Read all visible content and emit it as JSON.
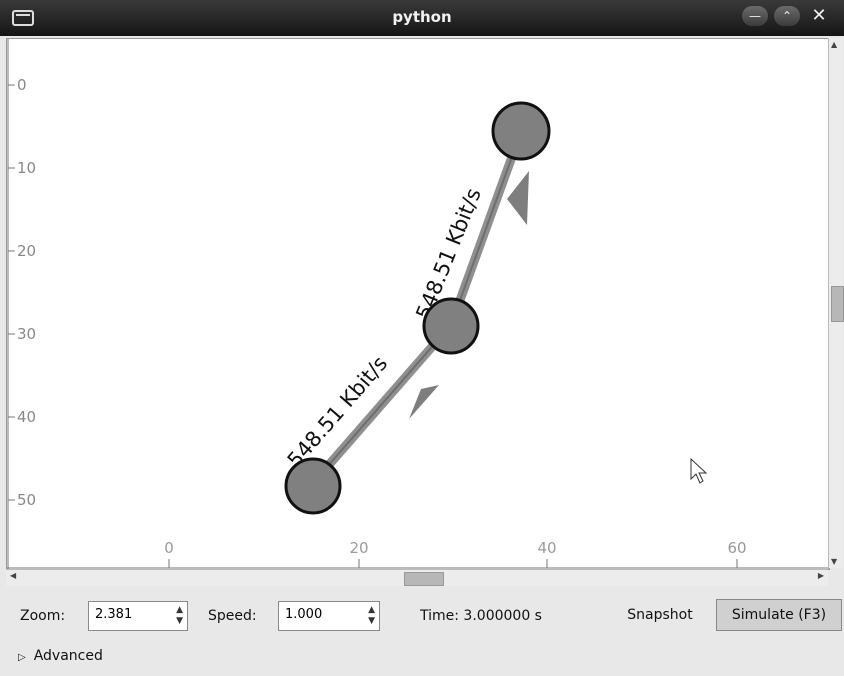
{
  "window": {
    "title": "python"
  },
  "canvas": {
    "y_ticks": [
      "0",
      "10",
      "20",
      "30",
      "40",
      "50"
    ],
    "x_ticks": [
      "0",
      "20",
      "40",
      "60"
    ],
    "links": [
      {
        "label": "548.51 Kbit/s"
      },
      {
        "label": "548.51 Kbit/s"
      }
    ],
    "nodes": [
      "node-0",
      "node-1",
      "node-2"
    ],
    "node_color": "#7f7f7f",
    "link_color": "#8f8f8f"
  },
  "controls": {
    "zoom_label": "Zoom:",
    "zoom_value": "2.381",
    "speed_label": "Speed:",
    "speed_value": "1.000",
    "time_text": "Time: 3.000000 s",
    "snapshot_label": "Snapshot",
    "simulate_label": "Simulate (F3)",
    "advanced_label": "Advanced"
  },
  "icons": [
    "window-menu-icon",
    "minimize-icon",
    "maximize-icon",
    "close-icon",
    "expander-arrow-icon",
    "mouse-cursor-icon"
  ]
}
